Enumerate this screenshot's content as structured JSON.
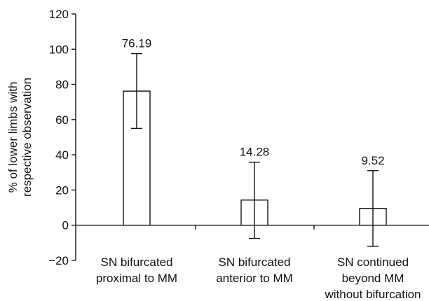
{
  "chart_data": {
    "type": "bar",
    "title": "",
    "xlabel": "",
    "ylabel_lines": [
      "% of lower limbs with",
      "respective observation"
    ],
    "ylim": [
      -20,
      120
    ],
    "yticks": [
      -20,
      0,
      20,
      40,
      60,
      80,
      100,
      120
    ],
    "ytick_labels": [
      "−20",
      "0",
      "20",
      "40",
      "60",
      "80",
      "100",
      "120"
    ],
    "grid": false,
    "legend": "none",
    "categories": [
      {
        "lines": [
          "SN bifurcated",
          "proximal to MM"
        ]
      },
      {
        "lines": [
          "SN bifurcated",
          "anterior to MM"
        ]
      },
      {
        "lines": [
          "SN continued",
          "beyond MM",
          "without bifurcation"
        ]
      }
    ],
    "values": [
      76.19,
      14.28,
      9.52
    ],
    "value_labels": [
      "76.19",
      "14.28",
      "9.52"
    ],
    "error_bars": [
      {
        "low": 55,
        "high": 97.5
      },
      {
        "low": -7.5,
        "high": 35.8
      },
      {
        "low": -12,
        "high": 31
      }
    ],
    "bar_fill": "#ffffff",
    "bar_stroke": "#111111"
  }
}
